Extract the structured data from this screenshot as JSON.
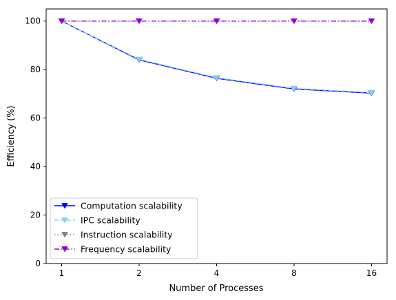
{
  "chart_data": {
    "type": "line",
    "title": "",
    "xlabel": "Number of Processes",
    "ylabel": "Efficiency (%)",
    "categories": [
      "1",
      "2",
      "4",
      "8",
      "16"
    ],
    "ylim": [
      0,
      105
    ],
    "yticks": [
      0,
      20,
      40,
      60,
      80,
      100
    ],
    "grid": false,
    "legend_position": "lower-left",
    "series": [
      {
        "name": "Computation scalability",
        "values": [
          100,
          84.0,
          76.4,
          72.0,
          70.3
        ],
        "color": "#0000ff",
        "dash": "solid",
        "marker": "triangle-down"
      },
      {
        "name": "IPC scalability",
        "values": [
          100,
          84.2,
          76.6,
          72.2,
          70.5
        ],
        "color": "#87ceeb",
        "dash": "dashed",
        "marker": "triangle-down"
      },
      {
        "name": "Instruction scalability",
        "values": [
          100,
          100,
          100,
          100,
          100
        ],
        "color": "#808080",
        "dash": "dotted",
        "marker": "triangle-down",
        "hidden_under": "Frequency scalability"
      },
      {
        "name": "Frequency scalability",
        "values": [
          100,
          100,
          100,
          100,
          100
        ],
        "color": "#9400d3",
        "dash": "dashdot",
        "marker": "triangle-down"
      }
    ]
  }
}
